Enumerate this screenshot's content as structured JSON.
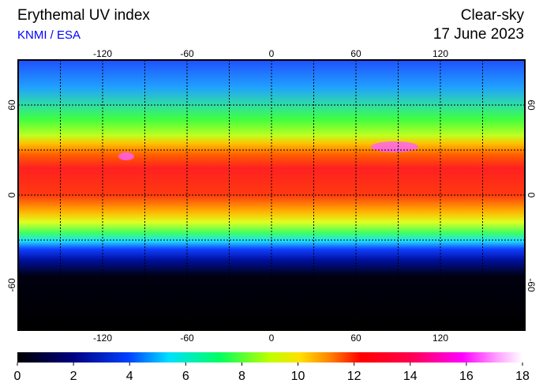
{
  "header": {
    "title": "Erythemal UV index",
    "credit": "KNMI / ESA",
    "mode": "Clear-sky",
    "date": "17 June 2023"
  },
  "map": {
    "lon_range": [
      -180,
      180
    ],
    "lat_range": [
      -90,
      90
    ],
    "lon_ticks": [
      -120,
      -60,
      0,
      60,
      120
    ],
    "lat_ticks": [
      60,
      0,
      -60
    ],
    "grid_lon": [
      -150,
      -120,
      -90,
      -60,
      -30,
      0,
      30,
      60,
      90,
      120,
      150
    ],
    "grid_lat": [
      60,
      30,
      0,
      -30,
      -60
    ]
  },
  "colorbar": {
    "range": [
      0,
      18
    ],
    "ticks": [
      0,
      2,
      4,
      6,
      8,
      10,
      12,
      14,
      16,
      18
    ]
  }
}
